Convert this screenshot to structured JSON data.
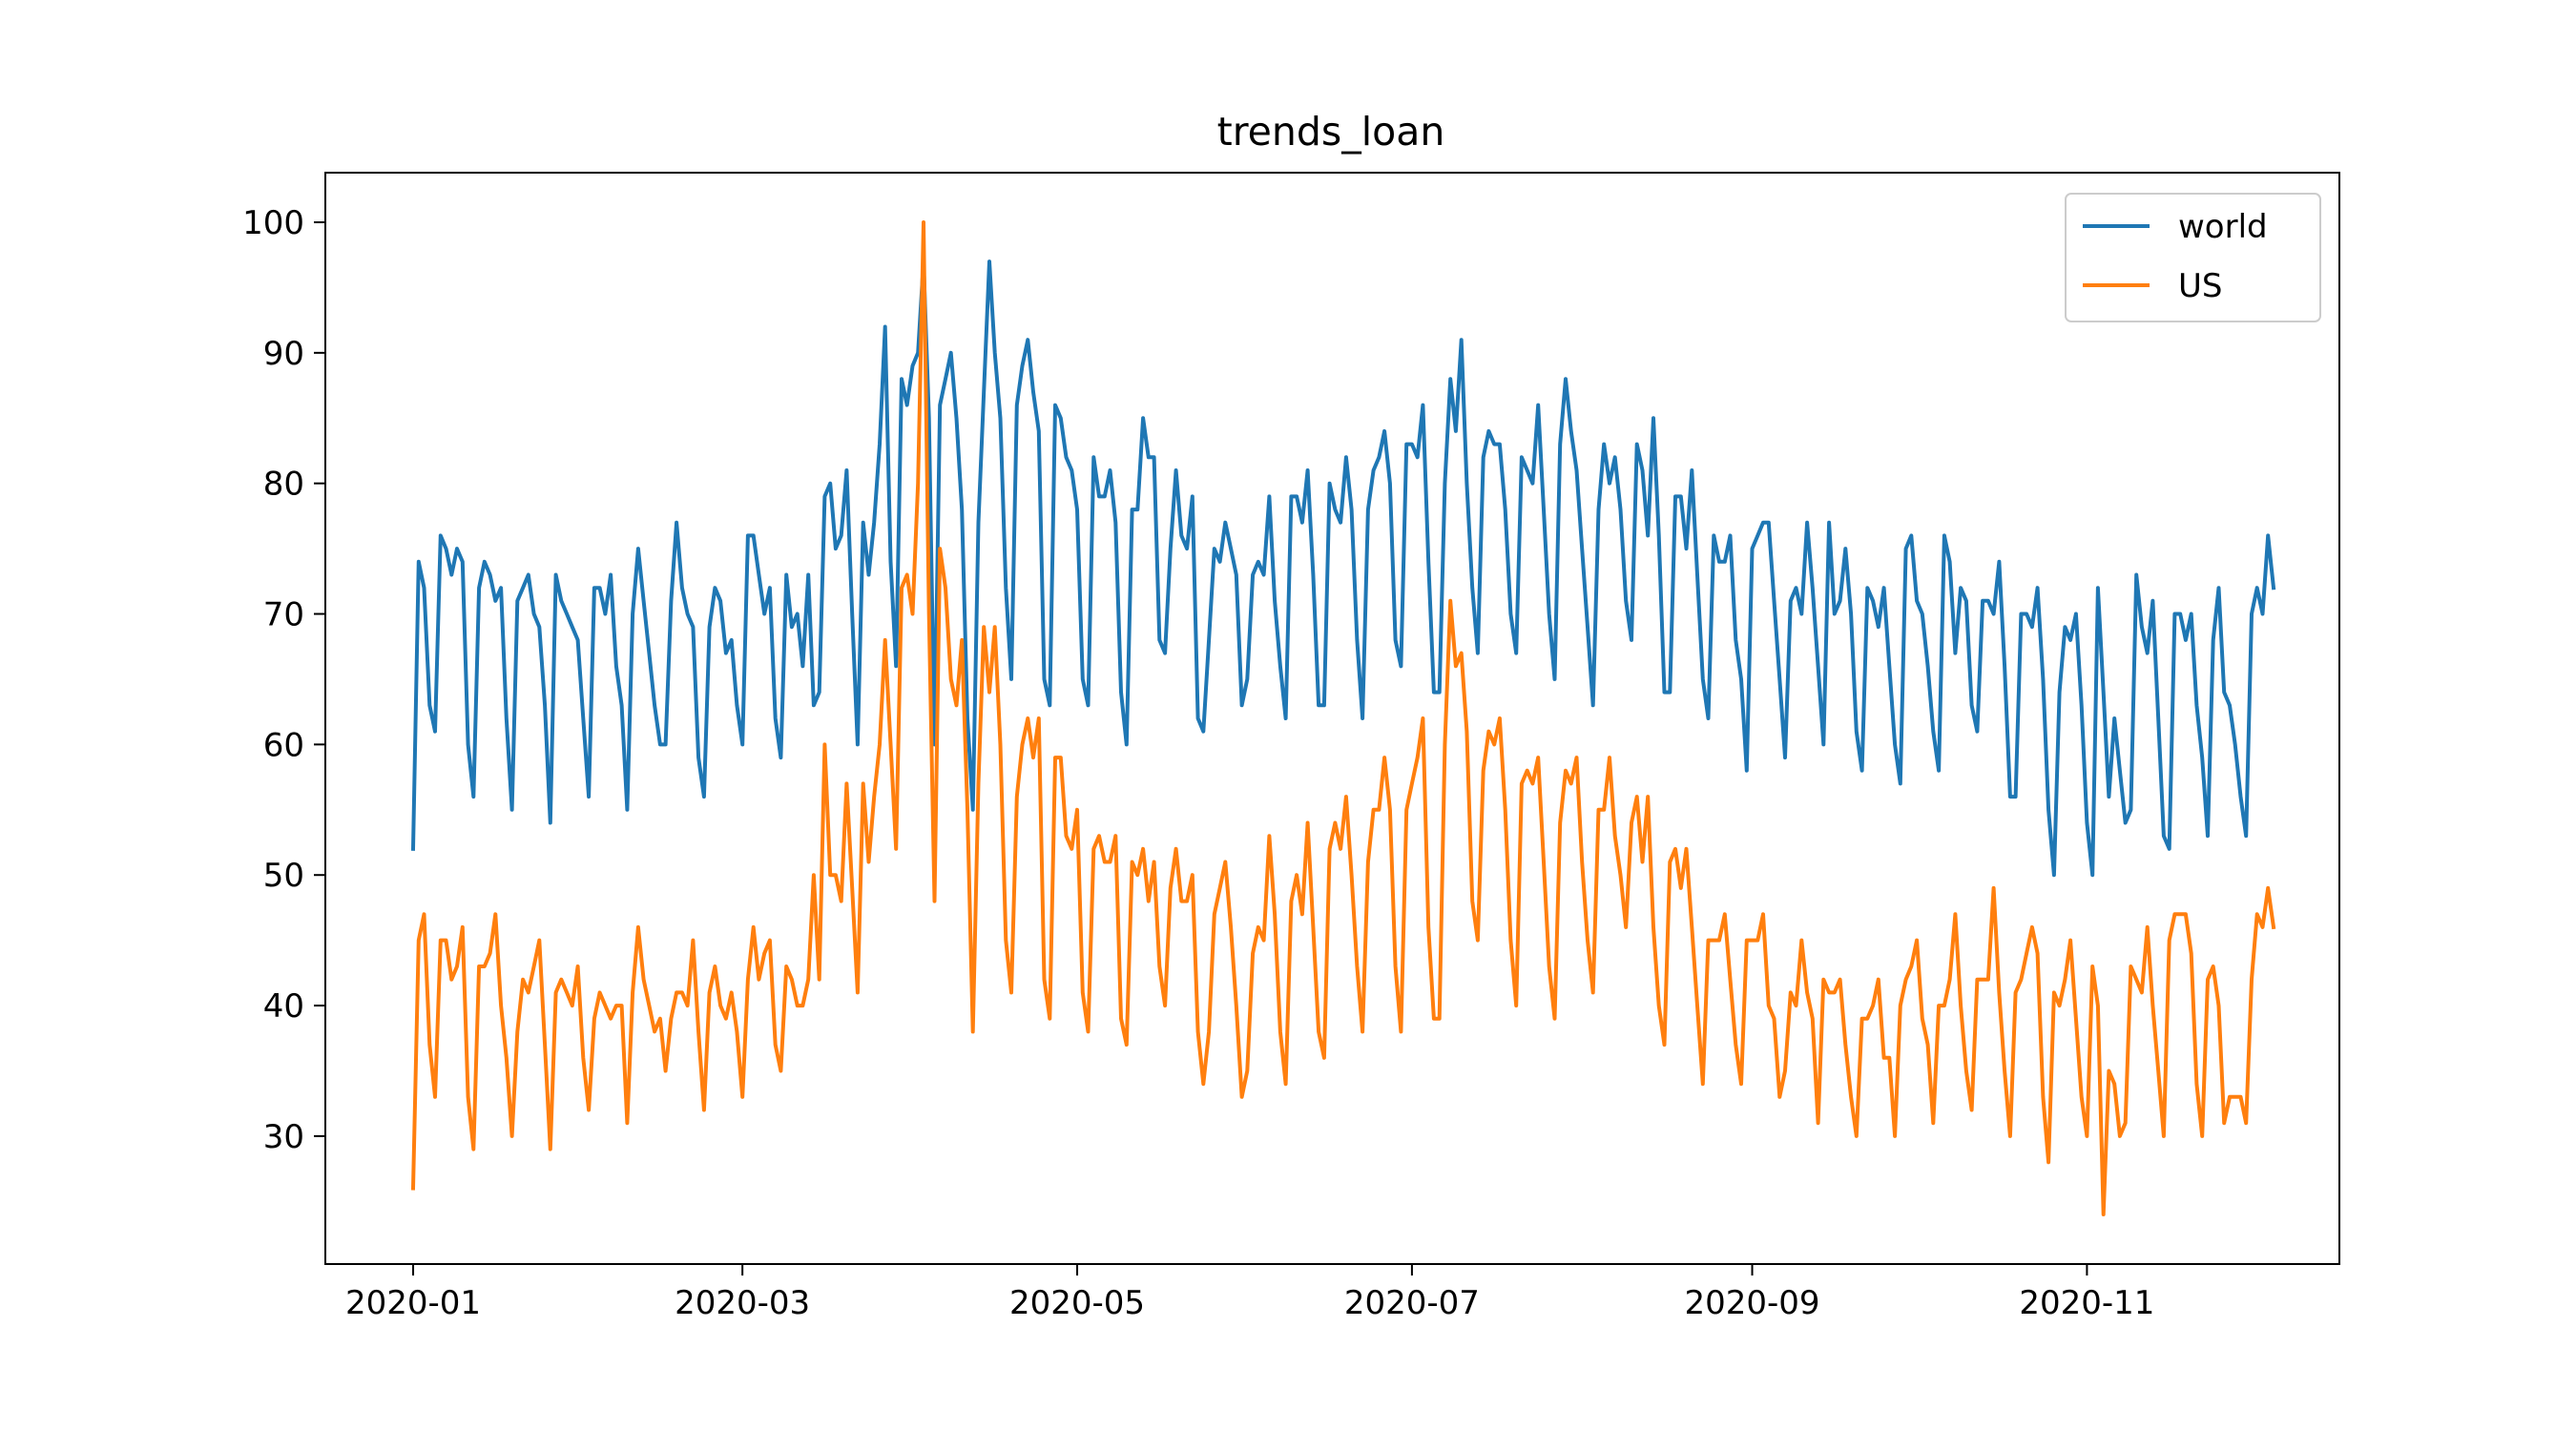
{
  "chart_data": {
    "type": "line",
    "title": "trends_loan",
    "xlabel": "",
    "ylabel": "",
    "xlim": [
      "2019-12-16",
      "2020-12-17"
    ],
    "ylim": [
      20.2,
      103.8
    ],
    "x_ticks": [
      "2020-01",
      "2020-03",
      "2020-05",
      "2020-07",
      "2020-09",
      "2020-11"
    ],
    "y_ticks": [
      30,
      40,
      50,
      60,
      70,
      80,
      90,
      100
    ],
    "grid": false,
    "legend": "top-right",
    "x_start": "2020-01-01",
    "x_step_days": 1,
    "series": [
      {
        "name": "world",
        "color": "#1f77b4",
        "values": [
          52,
          74,
          72,
          63,
          61,
          76,
          75,
          73,
          75,
          74,
          60,
          56,
          72,
          74,
          73,
          71,
          72,
          62,
          55,
          71,
          72,
          73,
          70,
          69,
          63,
          54,
          73,
          71,
          70,
          69,
          68,
          62,
          56,
          72,
          72,
          70,
          73,
          66,
          63,
          55,
          70,
          75,
          71,
          67,
          63,
          60,
          60,
          71,
          77,
          72,
          70,
          69,
          59,
          56,
          69,
          72,
          71,
          67,
          68,
          63,
          60,
          76,
          76,
          73,
          70,
          72,
          62,
          59,
          73,
          69,
          70,
          66,
          73,
          63,
          64,
          79,
          80,
          75,
          76,
          81,
          70,
          60,
          77,
          73,
          77,
          83,
          92,
          74,
          66,
          88,
          86,
          89,
          90,
          97,
          85,
          60,
          86,
          88,
          90,
          85,
          78,
          62,
          55,
          77,
          87,
          97,
          90,
          85,
          72,
          65,
          86,
          89,
          91,
          87,
          84,
          65,
          63,
          86,
          85,
          82,
          81,
          78,
          65,
          63,
          82,
          79,
          79,
          81,
          77,
          64,
          60,
          78,
          78,
          85,
          82,
          82,
          68,
          67,
          75,
          81,
          76,
          75,
          79,
          62,
          61,
          68,
          75,
          74,
          77,
          75,
          73,
          63,
          65,
          73,
          74,
          73,
          79,
          71,
          66,
          62,
          79,
          79,
          77,
          81,
          73,
          63,
          63,
          80,
          78,
          77,
          82,
          78,
          68,
          62,
          78,
          81,
          82,
          84,
          80,
          68,
          66,
          83,
          83,
          82,
          86,
          74,
          64,
          64,
          80,
          88,
          84,
          91,
          80,
          72,
          67,
          82,
          84,
          83,
          83,
          78,
          70,
          67,
          82,
          81,
          80,
          86,
          78,
          70,
          65,
          83,
          88,
          84,
          81,
          75,
          69,
          63,
          78,
          83,
          80,
          82,
          78,
          71,
          68,
          83,
          81,
          76,
          85,
          76,
          64,
          64,
          79,
          79,
          75,
          81,
          73,
          65,
          62,
          76,
          74,
          74,
          76,
          68,
          65,
          58,
          75,
          76,
          77,
          77,
          71,
          65,
          59,
          71,
          72,
          70,
          77,
          72,
          66,
          60,
          77,
          70,
          71,
          75,
          70,
          61,
          58,
          72,
          71,
          69,
          72,
          66,
          60,
          57,
          75,
          76,
          71,
          70,
          66,
          61,
          58,
          76,
          74,
          67,
          72,
          71,
          63,
          61,
          71,
          71,
          70,
          74,
          66,
          56,
          56,
          70,
          70,
          69,
          72,
          65,
          55,
          50,
          64,
          69,
          68,
          70,
          63,
          54,
          50,
          72,
          64,
          56,
          62,
          58,
          54,
          55,
          73,
          69,
          67,
          71,
          62,
          53,
          52,
          70,
          70,
          68,
          70,
          63,
          59,
          53,
          68,
          72,
          64,
          63,
          60,
          56,
          53,
          70,
          72,
          70,
          76,
          72
        ]
      },
      {
        "name": "US",
        "color": "#ff7f0e",
        "values": [
          26,
          45,
          47,
          37,
          33,
          45,
          45,
          42,
          43,
          46,
          33,
          29,
          43,
          43,
          44,
          47,
          40,
          36,
          30,
          38,
          42,
          41,
          43,
          45,
          37,
          29,
          41,
          42,
          41,
          40,
          43,
          36,
          32,
          39,
          41,
          40,
          39,
          40,
          40,
          31,
          41,
          46,
          42,
          40,
          38,
          39,
          35,
          39,
          41,
          41,
          40,
          45,
          38,
          32,
          41,
          43,
          40,
          39,
          41,
          38,
          33,
          42,
          46,
          42,
          44,
          45,
          37,
          35,
          43,
          42,
          40,
          40,
          42,
          50,
          42,
          60,
          50,
          50,
          48,
          57,
          49,
          41,
          57,
          51,
          56,
          60,
          68,
          60,
          52,
          72,
          73,
          70,
          80,
          100,
          70,
          48,
          75,
          72,
          65,
          63,
          68,
          55,
          38,
          57,
          69,
          64,
          69,
          60,
          45,
          41,
          56,
          60,
          62,
          59,
          62,
          42,
          39,
          59,
          59,
          53,
          52,
          55,
          41,
          38,
          52,
          53,
          51,
          51,
          53,
          39,
          37,
          51,
          50,
          52,
          48,
          51,
          43,
          40,
          49,
          52,
          48,
          48,
          50,
          38,
          34,
          38,
          47,
          49,
          51,
          46,
          40,
          33,
          35,
          44,
          46,
          45,
          53,
          47,
          38,
          34,
          48,
          50,
          47,
          54,
          46,
          38,
          36,
          52,
          54,
          52,
          56,
          50,
          43,
          38,
          51,
          55,
          55,
          59,
          55,
          43,
          38,
          55,
          57,
          59,
          62,
          46,
          39,
          39,
          60,
          71,
          66,
          67,
          61,
          48,
          45,
          58,
          61,
          60,
          62,
          55,
          45,
          40,
          57,
          58,
          57,
          59,
          51,
          43,
          39,
          54,
          58,
          57,
          59,
          51,
          45,
          41,
          55,
          55,
          59,
          53,
          50,
          46,
          54,
          56,
          51,
          56,
          46,
          40,
          37,
          51,
          52,
          49,
          52,
          46,
          40,
          34,
          45,
          45,
          45,
          47,
          42,
          37,
          34,
          45,
          45,
          45,
          47,
          40,
          39,
          33,
          35,
          41,
          40,
          45,
          41,
          39,
          31,
          42,
          41,
          41,
          42,
          37,
          33,
          30,
          39,
          39,
          40,
          42,
          36,
          36,
          30,
          40,
          42,
          43,
          45,
          39,
          37,
          31,
          40,
          40,
          42,
          47,
          40,
          35,
          32,
          42,
          42,
          42,
          49,
          41,
          35,
          30,
          41,
          42,
          44,
          46,
          44,
          33,
          28,
          41,
          40,
          42,
          45,
          39,
          33,
          30,
          43,
          40,
          24,
          35,
          34,
          30,
          31,
          43,
          42,
          41,
          46,
          40,
          35,
          30,
          45,
          47,
          47,
          47,
          44,
          34,
          30,
          42,
          43,
          40,
          31,
          33,
          33,
          33,
          31,
          42,
          47,
          46,
          49,
          46
        ]
      }
    ]
  }
}
